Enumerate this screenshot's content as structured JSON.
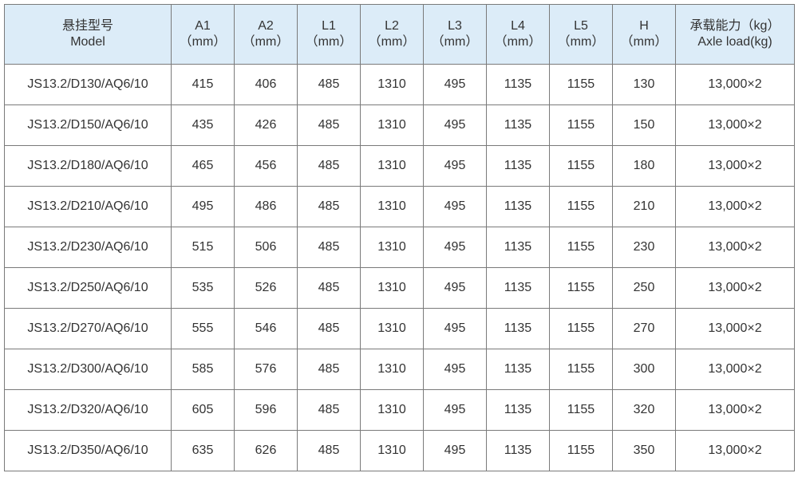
{
  "table": {
    "headers": [
      {
        "line1": "悬挂型号",
        "line2": "Model"
      },
      {
        "line1": "A1",
        "line2": "（mm）"
      },
      {
        "line1": "A2",
        "line2": "（mm）"
      },
      {
        "line1": "L1",
        "line2": "（mm）"
      },
      {
        "line1": "L2",
        "line2": "（mm）"
      },
      {
        "line1": "L3",
        "line2": "（mm）"
      },
      {
        "line1": "L4",
        "line2": "（mm）"
      },
      {
        "line1": "L5",
        "line2": "（mm）"
      },
      {
        "line1": "H",
        "line2": "（mm）"
      },
      {
        "line1": "承载能力（kg）",
        "line2": "Axle load(kg)"
      }
    ],
    "rows": [
      [
        "JS13.2/D130/AQ6/10",
        "415",
        "406",
        "485",
        "1310",
        "495",
        "1135",
        "1155",
        "130",
        "13,000×2"
      ],
      [
        "JS13.2/D150/AQ6/10",
        "435",
        "426",
        "485",
        "1310",
        "495",
        "1135",
        "1155",
        "150",
        "13,000×2"
      ],
      [
        "JS13.2/D180/AQ6/10",
        "465",
        "456",
        "485",
        "1310",
        "495",
        "1135",
        "1155",
        "180",
        "13,000×2"
      ],
      [
        "JS13.2/D210/AQ6/10",
        "495",
        "486",
        "485",
        "1310",
        "495",
        "1135",
        "1155",
        "210",
        "13,000×2"
      ],
      [
        "JS13.2/D230/AQ6/10",
        "515",
        "506",
        "485",
        "1310",
        "495",
        "1135",
        "1155",
        "230",
        "13,000×2"
      ],
      [
        "JS13.2/D250/AQ6/10",
        "535",
        "526",
        "485",
        "1310",
        "495",
        "1135",
        "1155",
        "250",
        "13,000×2"
      ],
      [
        "JS13.2/D270/AQ6/10",
        "555",
        "546",
        "485",
        "1310",
        "495",
        "1135",
        "1155",
        "270",
        "13,000×2"
      ],
      [
        "JS13.2/D300/AQ6/10",
        "585",
        "576",
        "485",
        "1310",
        "495",
        "1135",
        "1155",
        "300",
        "13,000×2"
      ],
      [
        "JS13.2/D320/AQ6/10",
        "605",
        "596",
        "485",
        "1310",
        "495",
        "1135",
        "1155",
        "320",
        "13,000×2"
      ],
      [
        "JS13.2/D350/AQ6/10",
        "635",
        "626",
        "485",
        "1310",
        "495",
        "1135",
        "1155",
        "350",
        "13,000×2"
      ]
    ]
  },
  "colors": {
    "header_bg": "#dcecf8",
    "border": "#7a7a7a",
    "text": "#333333"
  }
}
